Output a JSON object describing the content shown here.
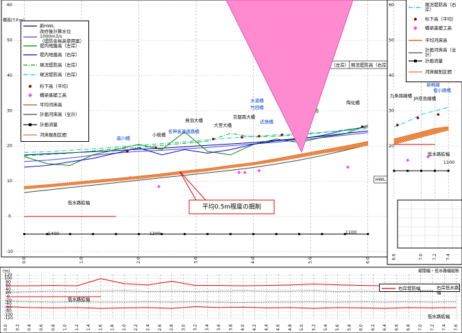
{
  "chart_data": [
    {
      "type": "line",
      "y_label": "標高(T.P.m)",
      "callout": "平均0.5m程度の掘削",
      "grid": true,
      "xlim": [
        -0.4,
        6.35
      ],
      "ylim": [
        -11.5,
        61.5
      ],
      "xticks": [
        {
          "value": 0,
          "label": "0.0"
        },
        {
          "value": 1,
          "label": "1.0"
        },
        {
          "value": 2,
          "label": "2.0"
        },
        {
          "value": 3,
          "label": "3.0"
        },
        {
          "value": 4,
          "label": "4.0"
        },
        {
          "value": 5,
          "label": "5.0"
        },
        {
          "value": 6,
          "label": "6.0"
        }
      ],
      "yticks": [
        -10,
        0,
        10,
        20,
        30,
        40,
        50,
        60
      ],
      "x": [
        0,
        0.4,
        0.8,
        1.2,
        1.6,
        2.0,
        2.4,
        2.8,
        3.2,
        3.6,
        4.0,
        4.4,
        4.8,
        5.2,
        5.6,
        6.0
      ],
      "series": [
        {
          "name": "新HWL",
          "color": "#000080",
          "values": [
            17.5,
            17.8,
            18.1,
            18.4,
            18.7,
            19.1,
            19.4,
            19.8,
            20.2,
            20.6,
            21.0,
            21.6,
            22.2,
            22.8,
            23.6,
            24.3
          ]
        },
        {
          "name": "改修後計算水位1000m3/s\n（堤防余裕高使用案）",
          "color": "#4040ff",
          "values": [
            15.6,
            16.0,
            16.6,
            17.4,
            18.0,
            18.5,
            18.8,
            19.2,
            19.6,
            20.1,
            20.6,
            21.1,
            21.7,
            22.4,
            23.1,
            23.8
          ]
        },
        {
          "name": "堤内地盤高（左岸）",
          "color": "#008000",
          "values": [
            17.0,
            15.0,
            14.5,
            17.5,
            19.0,
            20.5,
            19.0,
            24.0,
            18.5,
            17.5,
            20.5,
            22.0,
            21.0,
            22.5,
            23.5,
            26.0
          ]
        },
        {
          "name": "堤内地盤高（右岸）",
          "color": "#0000c0",
          "values": [
            14.0,
            14.5,
            15.5,
            16.5,
            18.0,
            19.5,
            17.5,
            19.0,
            18.0,
            19.0,
            20.5,
            21.5,
            22.0,
            23.0,
            24.5,
            25.5
          ]
        },
        {
          "name": "現況堤防高（左岸）",
          "color": "#00a000",
          "dash": "dashdot",
          "values": [
            17.2,
            17.6,
            18.0,
            18.6,
            19.2,
            19.6,
            20.2,
            20.8,
            21.4,
            23.6,
            22.6,
            22.8,
            23.2,
            23.8,
            24.6,
            25.4
          ]
        },
        {
          "name": "現況堤防高（右岸）",
          "color": "#00c0e0",
          "dash": "dashdot",
          "values": [
            18.2,
            18.4,
            18.8,
            19.2,
            19.7,
            20.2,
            20.7,
            21.2,
            21.8,
            22.3,
            22.8,
            23.2,
            23.5,
            23.9,
            24.4,
            25.0
          ]
        },
        {
          "name": "桁下高（平均）",
          "color": "#800000",
          "style": "points",
          "marker": "dot",
          "x": [
            1.8,
            2.3,
            3.3,
            3.8,
            4.1,
            4.5,
            5.9
          ],
          "values": [
            18.5,
            19.5,
            22.0,
            22.5,
            22.8,
            23.2,
            25.5
          ]
        },
        {
          "name": "橋梁基礎工高",
          "color": "#ff40ff",
          "style": "points",
          "marker": "diamond",
          "x": [
            1.85,
            2.35,
            3.75,
            3.85,
            4.1,
            5.65
          ],
          "values": [
            11,
            8.5,
            12.5,
            12.5,
            13,
            14
          ]
        },
        {
          "name": "平均河床高",
          "color": "#c05000",
          "values": [
            8.5,
            9.0,
            9.6,
            10.2,
            10.8,
            11.4,
            12.1,
            12.9,
            13.6,
            14.5,
            15.3,
            16.4,
            17.6,
            18.8,
            20.0,
            21.3
          ]
        },
        {
          "name": "計画河床高（全計）",
          "color": "#404040",
          "values": [
            6.8,
            7.5,
            8.2,
            8.9,
            9.6,
            10.3,
            11.0,
            11.7,
            12.4,
            13.1,
            13.9,
            14.9,
            16.0,
            17.3,
            18.8,
            20.3
          ]
        },
        {
          "name": "計画流量",
          "color": "#000000",
          "marker": "square",
          "values": [
            -5,
            -5,
            -5,
            -5,
            -5,
            -5,
            -5,
            -5,
            -5,
            -5,
            -5,
            -5,
            -5,
            -5,
            -5,
            -5
          ]
        },
        {
          "name": "河床掘削区間",
          "color": "#f07020",
          "style": "band",
          "values": [
            7.8,
            8.3,
            8.9,
            9.5,
            10.1,
            10.7,
            11.4,
            12.2,
            12.9,
            13.8,
            14.6,
            15.6,
            16.7,
            17.9,
            19.0,
            20.2
          ]
        },
        {
          "color": "#e00000",
          "values": [
            0,
            0,
            0,
            0,
            0,
            null,
            null,
            null,
            null,
            null,
            null,
            null,
            null,
            null,
            null,
            null
          ]
        }
      ],
      "annotations": [
        "森川橋",
        "小枝橋",
        "名神高速道路橋",
        "鳥羽大橋",
        "大宮大橋",
        "京都南大橋",
        "水道橋",
        "竹田橋",
        "近鉄橋",
        "勧進橋",
        "陶化橋",
        "現況堤防高（左岸）",
        "現況堤防高（右岸）",
        "低水路拡幅",
        "1400",
        "1200",
        "1100",
        "HWL"
      ]
    },
    {
      "type": "line",
      "grid": true,
      "xlim": [
        6.5,
        7.6
      ],
      "ylim": [
        5,
        61.5
      ],
      "xticks": [
        6.6,
        {
          "value": 7,
          "label": "7.0"
        },
        7.2,
        7.4
      ],
      "yticks": [
        20,
        30,
        40,
        50,
        60
      ],
      "x": [
        6.6,
        6.8,
        7.0,
        7.2,
        7.4
      ],
      "series": [
        {
          "name": "現況堤防高（右岸）",
          "color": "#00c0e0",
          "dash": "dashdot",
          "values": [
            25.5,
            27,
            29,
            30,
            31
          ]
        },
        {
          "name": "桁下高（平均）",
          "color": "#800000",
          "style": "points",
          "marker": "dot",
          "x": [
            6.65,
            6.95,
            7.25
          ],
          "values": [
            26,
            28,
            29
          ]
        },
        {
          "name": "橋梁基礎工高",
          "color": "#ff40ff",
          "style": "points",
          "marker": "diamond",
          "x": [
            6.8,
            7.1
          ],
          "values": [
            16,
            17
          ]
        },
        {
          "name": "平均河床高",
          "color": "#c05000",
          "values": [
            22,
            23,
            24,
            25,
            25.5
          ]
        },
        {
          "name": "計画河床高（全計）",
          "color": "#404040",
          "values": [
            21,
            22,
            23.5,
            24.5,
            25
          ]
        },
        {
          "name": "計画流量",
          "color": "#000000",
          "marker": "square",
          "values": [
            13,
            13,
            13,
            13,
            13
          ]
        },
        {
          "name": "河床掘削区間",
          "color": "#f07020",
          "style": "band",
          "values": [
            20.5,
            21.5,
            22.5,
            23.5,
            24.5
          ]
        },
        {
          "color": "#e00000",
          "values": [
            20.5,
            20.5,
            20.5,
            20.5,
            null
          ]
        }
      ],
      "annotations": [
        "九条跨線橋",
        "JR奈良線橋",
        "新幹線",
        "塩小路橋",
        "低水路拡幅",
        "1100"
      ]
    },
    {
      "type": "line",
      "title": "堤間幅・低水路幅縦断",
      "y_label": "(m)",
      "grid": true,
      "xlim": [
        -0.1,
        7.7
      ],
      "ylim": [
        -125,
        125
      ],
      "yticks": [
        -120,
        -100,
        -80,
        -60,
        -40,
        -20,
        0,
        20,
        40,
        60,
        80,
        100,
        120
      ],
      "xticks": [
        {
          "value": 0,
          "label": "0.0"
        },
        0.2,
        0.4,
        0.6,
        0.8,
        {
          "value": 1,
          "label": "1.0"
        },
        1.2,
        1.4,
        1.6,
        1.8,
        {
          "value": 2,
          "label": "2.0"
        },
        2.2,
        2.4,
        2.6,
        2.8,
        {
          "value": 3,
          "label": "3.0"
        },
        3.2,
        3.4,
        3.6,
        3.8,
        {
          "value": 4,
          "label": "4.0"
        },
        4.2,
        4.4,
        4.6,
        4.8,
        {
          "value": 5,
          "label": "5.0"
        },
        5.2,
        5.4,
        5.6,
        5.8,
        {
          "value": 6,
          "label": "6.0"
        },
        6.2,
        6.4,
        6.6,
        6.8,
        {
          "value": 7,
          "label": "7.0"
        },
        7.2,
        7.4,
        7.6
      ],
      "x": [
        0,
        0.4,
        0.8,
        1.2,
        1.6,
        2.0,
        2.4,
        2.8,
        3.2,
        3.6,
        4.0,
        4.4,
        4.8,
        5.2,
        5.6,
        6.0,
        6.4,
        6.8,
        7.2,
        7.6
      ],
      "series": [
        {
          "name": "右岸堤防幅",
          "color": "#e00000",
          "values": [
            60,
            60,
            62,
            60,
            100,
            72,
            65,
            85,
            62,
            62,
            60,
            62,
            65,
            70,
            66,
            62,
            60,
            65,
            62,
            60
          ]
        },
        {
          "name": "右岸低水路幅",
          "color": "#000000",
          "dash": "dotted",
          "values": [
            25,
            28,
            30,
            28,
            30,
            32,
            28,
            30,
            28,
            30,
            32,
            30,
            30,
            32,
            28,
            30,
            28,
            30,
            28,
            30
          ]
        },
        {
          "color": "#e00000",
          "values": [
            -55,
            -60,
            -62,
            -60,
            -65,
            -62,
            -60,
            -65,
            -55,
            -60,
            -58,
            -62,
            -60,
            -65,
            -60,
            -62,
            -65,
            -60,
            -62,
            -60
          ]
        },
        {
          "color": "#000000",
          "dash": "dotted",
          "values": [
            -25,
            -28,
            -30,
            -28,
            -30,
            -30,
            -28,
            -30,
            -28,
            -30,
            -32,
            -30,
            -30,
            -28,
            -30,
            -28,
            -30,
            -28,
            -30,
            -28
          ]
        },
        {
          "color": "#e00000",
          "values": [
            0,
            0,
            0,
            0,
            0,
            null,
            null,
            null,
            null,
            null,
            null,
            null,
            null,
            null,
            null,
            null,
            null,
            null,
            null,
            null
          ]
        }
      ],
      "annotations": [
        "低水路拡幅",
        "低水路拡幅"
      ]
    }
  ]
}
